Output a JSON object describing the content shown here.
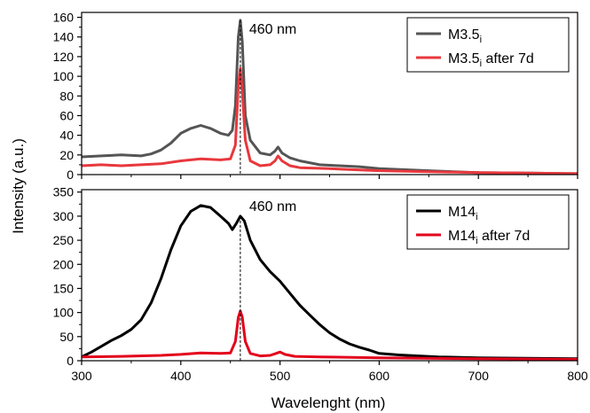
{
  "chart_data": {
    "type": "line",
    "xlabel": "Wavelenght (nm)",
    "ylabel": "Intensity (a.u.)",
    "xlim": [
      300,
      800
    ],
    "xticks": [
      300,
      400,
      500,
      600,
      700,
      800
    ],
    "panels": [
      {
        "ylim": [
          0,
          165
        ],
        "yticks": [
          0,
          20,
          40,
          60,
          80,
          100,
          120,
          140,
          160
        ],
        "annotation": "460 nm",
        "marker_x": 460,
        "legend_position": "top-right",
        "series": [
          {
            "name": "M3.5",
            "name_sub": "i",
            "name_suffix": "",
            "color": "#555555",
            "points": [
              [
                300,
                18
              ],
              [
                320,
                19
              ],
              [
                340,
                20
              ],
              [
                360,
                19
              ],
              [
                370,
                21
              ],
              [
                380,
                25
              ],
              [
                390,
                32
              ],
              [
                400,
                42
              ],
              [
                410,
                47
              ],
              [
                420,
                50
              ],
              [
                430,
                47
              ],
              [
                440,
                42
              ],
              [
                448,
                40
              ],
              [
                452,
                45
              ],
              [
                455,
                70
              ],
              [
                458,
                140
              ],
              [
                460,
                157
              ],
              [
                462,
                135
              ],
              [
                465,
                60
              ],
              [
                470,
                35
              ],
              [
                480,
                22
              ],
              [
                490,
                20
              ],
              [
                495,
                24
              ],
              [
                498,
                28
              ],
              [
                502,
                22
              ],
              [
                510,
                17
              ],
              [
                520,
                14
              ],
              [
                540,
                10
              ],
              [
                560,
                9
              ],
              [
                580,
                8
              ],
              [
                600,
                6
              ],
              [
                650,
                4
              ],
              [
                700,
                2
              ],
              [
                750,
                1.5
              ],
              [
                800,
                1
              ]
            ]
          },
          {
            "name": "M3.5",
            "name_sub": "i",
            "name_suffix": " after 7d",
            "color": "#e8383d",
            "points": [
              [
                300,
                9
              ],
              [
                320,
                10
              ],
              [
                340,
                9
              ],
              [
                360,
                10
              ],
              [
                380,
                11
              ],
              [
                400,
                14
              ],
              [
                420,
                16
              ],
              [
                440,
                15
              ],
              [
                450,
                16
              ],
              [
                455,
                30
              ],
              [
                458,
                90
              ],
              [
                460,
                108
              ],
              [
                462,
                85
              ],
              [
                465,
                35
              ],
              [
                470,
                14
              ],
              [
                480,
                9
              ],
              [
                490,
                10
              ],
              [
                495,
                14
              ],
              [
                498,
                19
              ],
              [
                502,
                14
              ],
              [
                510,
                9
              ],
              [
                520,
                7
              ],
              [
                550,
                6
              ],
              [
                600,
                4
              ],
              [
                650,
                3
              ],
              [
                700,
                2
              ],
              [
                750,
                1.5
              ],
              [
                800,
                1
              ]
            ]
          }
        ]
      },
      {
        "ylim": [
          0,
          355
        ],
        "yticks": [
          0,
          50,
          100,
          150,
          200,
          250,
          300,
          350
        ],
        "annotation": "460 nm",
        "marker_x": 460,
        "legend_position": "top-right",
        "series": [
          {
            "name": "M14",
            "name_sub": "i",
            "name_suffix": "",
            "color": "#000000",
            "points": [
              [
                300,
                8
              ],
              [
                310,
                18
              ],
              [
                320,
                30
              ],
              [
                330,
                42
              ],
              [
                340,
                52
              ],
              [
                350,
                65
              ],
              [
                360,
                85
              ],
              [
                370,
                120
              ],
              [
                380,
                170
              ],
              [
                390,
                230
              ],
              [
                400,
                280
              ],
              [
                410,
                310
              ],
              [
                420,
                322
              ],
              [
                430,
                318
              ],
              [
                440,
                300
              ],
              [
                448,
                285
              ],
              [
                452,
                272
              ],
              [
                456,
                285
              ],
              [
                460,
                300
              ],
              [
                464,
                290
              ],
              [
                470,
                250
              ],
              [
                480,
                210
              ],
              [
                490,
                185
              ],
              [
                500,
                165
              ],
              [
                510,
                140
              ],
              [
                520,
                115
              ],
              [
                530,
                95
              ],
              [
                540,
                75
              ],
              [
                550,
                58
              ],
              [
                560,
                45
              ],
              [
                570,
                35
              ],
              [
                580,
                28
              ],
              [
                590,
                22
              ],
              [
                600,
                15
              ],
              [
                620,
                12
              ],
              [
                640,
                10
              ],
              [
                660,
                8
              ],
              [
                700,
                6
              ],
              [
                750,
                5
              ],
              [
                800,
                4
              ]
            ]
          },
          {
            "name": "M14",
            "name_sub": "i",
            "name_suffix": " after 7d",
            "color": "#e3001b",
            "points": [
              [
                300,
                8
              ],
              [
                340,
                9
              ],
              [
                380,
                11
              ],
              [
                400,
                13
              ],
              [
                420,
                16
              ],
              [
                440,
                15
              ],
              [
                450,
                16
              ],
              [
                455,
                40
              ],
              [
                458,
                90
              ],
              [
                460,
                103
              ],
              [
                462,
                90
              ],
              [
                465,
                40
              ],
              [
                470,
                15
              ],
              [
                480,
                10
              ],
              [
                490,
                11
              ],
              [
                496,
                15
              ],
              [
                500,
                18
              ],
              [
                505,
                13
              ],
              [
                515,
                9
              ],
              [
                540,
                8
              ],
              [
                600,
                6
              ],
              [
                700,
                4
              ],
              [
                800,
                3
              ]
            ]
          }
        ]
      }
    ]
  }
}
